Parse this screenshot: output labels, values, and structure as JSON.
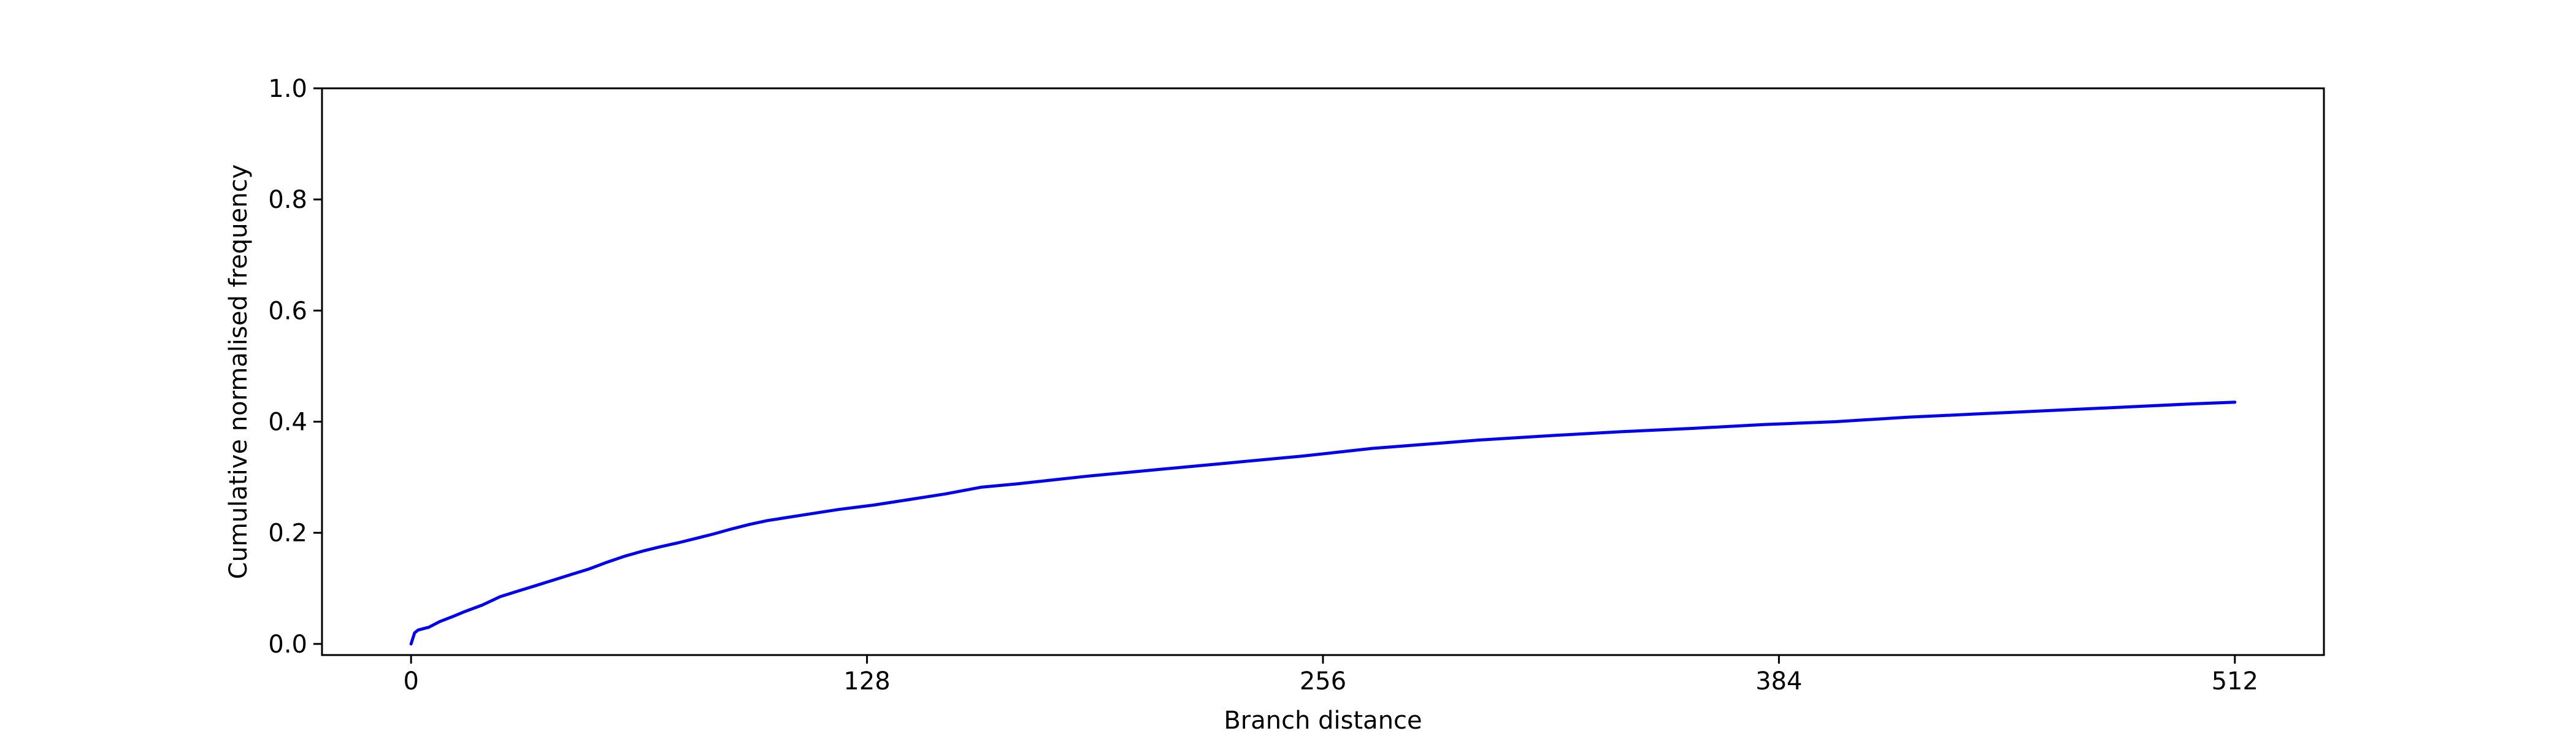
{
  "chart_data": {
    "type": "line",
    "title": "",
    "xlabel": "Branch distance",
    "ylabel": "Cumulative normalised frequency",
    "xlim": [
      -25,
      537
    ],
    "ylim": [
      -0.02,
      1.0
    ],
    "x_ticks": [
      0,
      128,
      256,
      384,
      512
    ],
    "x_tick_labels": [
      "0",
      "128",
      "256",
      "384",
      "512"
    ],
    "y_ticks": [
      0.0,
      0.2,
      0.4,
      0.6,
      0.8,
      1.0
    ],
    "y_tick_labels": [
      "0.0",
      "0.2",
      "0.4",
      "0.6",
      "0.8",
      "1.0"
    ],
    "grid": false,
    "legend": "none",
    "colors": {
      "series": "#0000ee",
      "axes": "#000000",
      "background": "#ffffff"
    },
    "series": [
      {
        "x": [
          0,
          1,
          2,
          5,
          8,
          10,
          12,
          15,
          20,
          25,
          30,
          35,
          40,
          45,
          50,
          55,
          60,
          65,
          70,
          75,
          80,
          85,
          90,
          95,
          100,
          110,
          120,
          130,
          140,
          150,
          160,
          170,
          180,
          190,
          200,
          210,
          220,
          230,
          240,
          250,
          260,
          270,
          280,
          290,
          300,
          320,
          340,
          360,
          380,
          400,
          420,
          440,
          460,
          480,
          500,
          512
        ],
        "y": [
          0.0,
          0.02,
          0.025,
          0.03,
          0.04,
          0.045,
          0.05,
          0.058,
          0.07,
          0.085,
          0.095,
          0.105,
          0.115,
          0.125,
          0.135,
          0.147,
          0.158,
          0.167,
          0.175,
          0.182,
          0.19,
          0.198,
          0.207,
          0.215,
          0.222,
          0.232,
          0.242,
          0.25,
          0.26,
          0.27,
          0.282,
          0.288,
          0.295,
          0.302,
          0.308,
          0.314,
          0.32,
          0.326,
          0.332,
          0.338,
          0.345,
          0.352,
          0.357,
          0.362,
          0.367,
          0.375,
          0.382,
          0.388,
          0.395,
          0.4,
          0.408,
          0.414,
          0.42,
          0.426,
          0.432,
          0.435
        ]
      }
    ]
  }
}
